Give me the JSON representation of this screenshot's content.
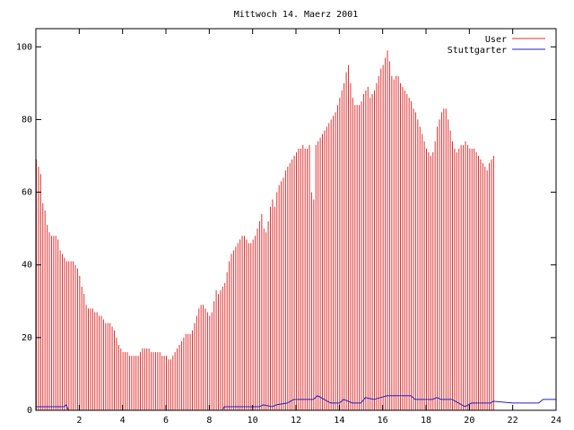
{
  "chart_data": {
    "type": "bar",
    "title": "Mittwoch 14. Maerz 2001",
    "xlabel": "",
    "ylabel": "",
    "xlim": [
      0,
      24
    ],
    "ylim": [
      0,
      105
    ],
    "xticks": [
      2,
      4,
      6,
      8,
      10,
      12,
      14,
      16,
      18,
      20,
      22,
      24
    ],
    "yticks": [
      0,
      20,
      40,
      60,
      80,
      100
    ],
    "legend_position": "top-right",
    "grid": false,
    "colors": {
      "User": "#e03030",
      "Stuttgarter": "#2020c0"
    },
    "series": [
      {
        "name": "User",
        "style": "impulses",
        "x_start": 0,
        "x_step": 0.1,
        "values": [
          69,
          67,
          65,
          57,
          55,
          51,
          49,
          48,
          48,
          48,
          47,
          44,
          43,
          42,
          41,
          41,
          41,
          41,
          40,
          39,
          37,
          34,
          32,
          29,
          28,
          28,
          28,
          27,
          27,
          26,
          26,
          25,
          24,
          24,
          24,
          23,
          22,
          20,
          18,
          17,
          16,
          16,
          16,
          15,
          15,
          15,
          15,
          15,
          16,
          17,
          17,
          17,
          17,
          16,
          16,
          16,
          16,
          16,
          15,
          15,
          15,
          14,
          14,
          15,
          16,
          17,
          18,
          19,
          20,
          21,
          21,
          21,
          22,
          24,
          26,
          28,
          29,
          29,
          28,
          27,
          26,
          27,
          30,
          33,
          32,
          33,
          34,
          35,
          38,
          41,
          43,
          44,
          45,
          46,
          47,
          48,
          48,
          47,
          46,
          46,
          47,
          48,
          50,
          52,
          54,
          50,
          49,
          52,
          56,
          58,
          56,
          60,
          62,
          63,
          64,
          66,
          67,
          68,
          69,
          70,
          71,
          72,
          72,
          73,
          72,
          72,
          73,
          60,
          58,
          73,
          74,
          75,
          76,
          77,
          78,
          79,
          80,
          81,
          82,
          84,
          86,
          88,
          90,
          93,
          95,
          90,
          86,
          84,
          84,
          84,
          85,
          87,
          88,
          89,
          86,
          87,
          88,
          90,
          92,
          94,
          95,
          97,
          99,
          96,
          92,
          91,
          92,
          92,
          90,
          89,
          88,
          87,
          86,
          85,
          83,
          82,
          80,
          78,
          76,
          74,
          72,
          71,
          70,
          71,
          74,
          78,
          80,
          82,
          83,
          83,
          80,
          77,
          74,
          72,
          71,
          72,
          73,
          73,
          74,
          73,
          72,
          72,
          72,
          71,
          70,
          69,
          68,
          67,
          66,
          68,
          69,
          70
        ]
      },
      {
        "name": "Stuttgarter",
        "style": "line",
        "points": [
          [
            0,
            1
          ],
          [
            1.3,
            1
          ],
          [
            1.4,
            1.5
          ],
          [
            1.5,
            0
          ],
          [
            8.6,
            0
          ],
          [
            8.7,
            1
          ],
          [
            10.3,
            1
          ],
          [
            10.5,
            1.5
          ],
          [
            10.9,
            1
          ],
          [
            11.1,
            1.5
          ],
          [
            11.6,
            2
          ],
          [
            11.9,
            3
          ],
          [
            12.8,
            3
          ],
          [
            13.0,
            4
          ],
          [
            13.3,
            3
          ],
          [
            13.6,
            2
          ],
          [
            14.0,
            2
          ],
          [
            14.2,
            3
          ],
          [
            14.6,
            2
          ],
          [
            15.0,
            2
          ],
          [
            15.2,
            3.5
          ],
          [
            15.6,
            3
          ],
          [
            15.9,
            3.5
          ],
          [
            16.2,
            4
          ],
          [
            17.3,
            4
          ],
          [
            17.5,
            3
          ],
          [
            18.3,
            3
          ],
          [
            18.5,
            3.5
          ],
          [
            18.7,
            3
          ],
          [
            19.2,
            3
          ],
          [
            19.5,
            2
          ],
          [
            19.8,
            1
          ],
          [
            20.1,
            2
          ],
          [
            21.0,
            2
          ],
          [
            21.1,
            2.5
          ],
          [
            22.0,
            2
          ],
          [
            23.2,
            2
          ],
          [
            23.4,
            3
          ],
          [
            24.0,
            3
          ]
        ]
      }
    ]
  }
}
